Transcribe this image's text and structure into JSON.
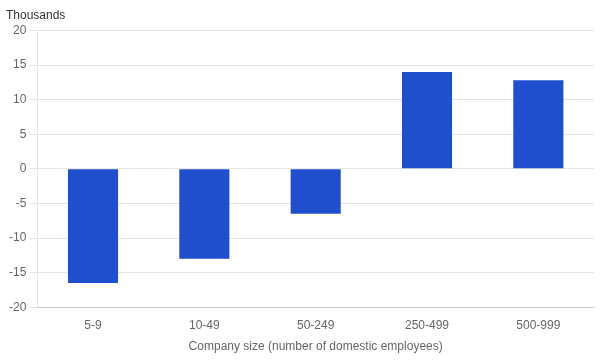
{
  "chart_data": {
    "type": "bar",
    "ylabel": "Thousands",
    "xlabel": "Company size (number of domestic employees)",
    "categories": [
      "5-9",
      "10-49",
      "50-249",
      "250-499",
      "500-999"
    ],
    "values": [
      -16.5,
      -13.0,
      -6.5,
      14.0,
      12.8
    ],
    "color": "#1F4FCC",
    "ylim": [
      -20,
      20
    ],
    "yticks": [
      -20,
      -15,
      -10,
      -5,
      0,
      5,
      10,
      15,
      20
    ],
    "grid": true
  }
}
